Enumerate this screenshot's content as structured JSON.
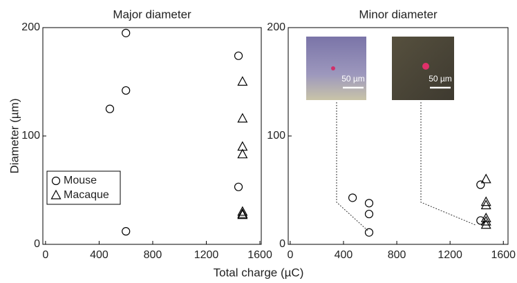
{
  "chart_data": [
    {
      "type": "scatter",
      "title": "Major diameter",
      "ylabel": "Diameter (µm)",
      "xlabel": "Total charge (µC)",
      "xlim": [
        -20,
        1610
      ],
      "ylim": [
        0,
        200
      ],
      "xticks": [
        0,
        400,
        800,
        1200,
        1600
      ],
      "yticks": [
        0,
        100,
        200
      ],
      "legend": "lower left",
      "series": [
        {
          "name": "Mouse",
          "marker": "circle",
          "color": "#000000",
          "x": [
            600,
            600,
            480,
            1440,
            1440,
            600
          ],
          "values": [
            195,
            142,
            125,
            174,
            53,
            12
          ]
        },
        {
          "name": "Macaque",
          "marker": "triangle",
          "color": "#000000",
          "x": [
            1470,
            1470,
            1470,
            1470,
            1470,
            1470,
            1470
          ],
          "values": [
            150,
            116,
            90,
            83,
            30,
            28,
            27
          ]
        }
      ]
    },
    {
      "type": "scatter",
      "title": "Minor diameter",
      "xlim": [
        -15,
        1635
      ],
      "ylim": [
        0,
        200
      ],
      "xticks": [
        0,
        400,
        800,
        1200,
        1600
      ],
      "yticks": [
        0,
        100,
        200
      ],
      "annotations": [
        "50 µm",
        "50 µm"
      ],
      "series": [
        {
          "name": "Mouse",
          "marker": "circle",
          "color": "#000000",
          "x": [
            468,
            592,
            592,
            592,
            1429,
            1429
          ],
          "values": [
            43,
            38,
            28,
            11,
            55,
            22
          ]
        },
        {
          "name": "Macaque",
          "marker": "triangle",
          "color": "#000000",
          "x": [
            1470,
            1470,
            1470,
            1470,
            1470,
            1470
          ],
          "values": [
            60,
            39,
            36,
            24,
            21,
            18
          ]
        }
      ]
    }
  ]
}
